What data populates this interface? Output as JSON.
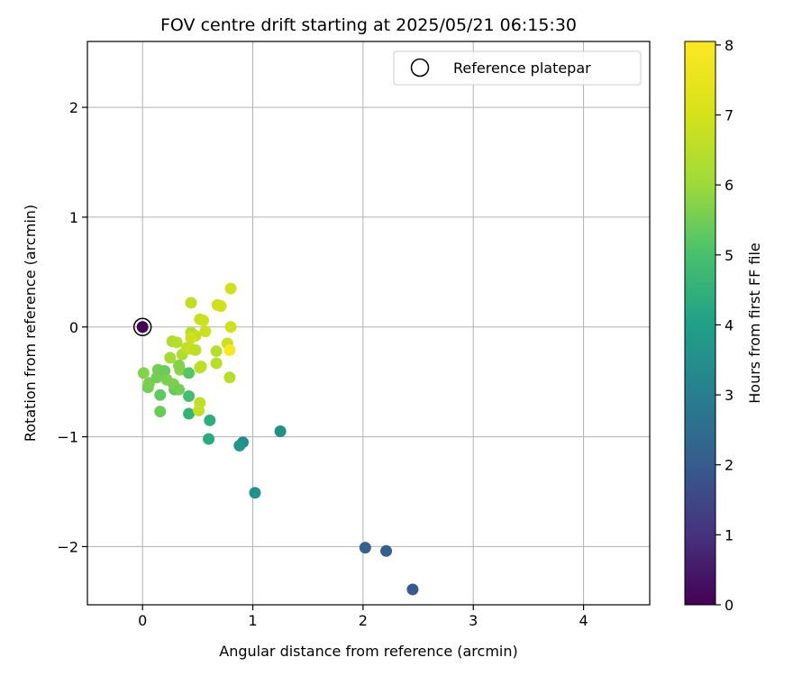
{
  "chart_data": {
    "type": "scatter",
    "title": "FOV centre drift starting at 2025/05/21 06:15:30",
    "xlabel": "Angular distance from reference (arcmin)",
    "ylabel": "Rotation from reference (arcmin)",
    "xlim": [
      -0.5,
      4.6
    ],
    "ylim": [
      -2.53,
      2.6
    ],
    "xticks": [
      0,
      1,
      2,
      3,
      4
    ],
    "xtick_labels": [
      "0",
      "1",
      "2",
      "3",
      "4"
    ],
    "yticks": [
      -2,
      -1,
      0,
      1,
      2
    ],
    "ytick_labels": [
      "−2",
      "−1",
      "0",
      "1",
      "2"
    ],
    "grid": true,
    "legend": {
      "position": "top-right",
      "entries": [
        {
          "label": "Reference platepar",
          "marker": "open-circle"
        }
      ]
    },
    "reference_point": {
      "x": 0,
      "y": 0
    },
    "colorbar": {
      "label": "Hours from first FF file",
      "range": [
        0,
        8.05
      ],
      "ticks": [
        0,
        1,
        2,
        3,
        4,
        5,
        6,
        7,
        8
      ],
      "tick_labels": [
        "0",
        "1",
        "2",
        "3",
        "4",
        "5",
        "6",
        "7",
        "8"
      ],
      "colormap": "viridis"
    },
    "points": [
      {
        "x": 0.0,
        "y": 0.0,
        "hours": 0.0
      },
      {
        "x": 2.45,
        "y": -2.39,
        "hours": 2.0
      },
      {
        "x": 2.21,
        "y": -2.04,
        "hours": 2.1
      },
      {
        "x": 2.02,
        "y": -2.01,
        "hours": 2.2
      },
      {
        "x": 1.02,
        "y": -1.51,
        "hours": 3.6
      },
      {
        "x": 1.25,
        "y": -0.95,
        "hours": 3.5
      },
      {
        "x": 0.91,
        "y": -1.05,
        "hours": 3.4
      },
      {
        "x": 0.88,
        "y": -1.08,
        "hours": 3.7
      },
      {
        "x": 0.6,
        "y": -1.02,
        "hours": 4.3
      },
      {
        "x": 0.61,
        "y": -0.85,
        "hours": 4.4
      },
      {
        "x": 0.42,
        "y": -0.79,
        "hours": 4.6
      },
      {
        "x": 0.42,
        "y": -0.63,
        "hours": 4.9
      },
      {
        "x": 0.16,
        "y": -0.77,
        "hours": 5.4
      },
      {
        "x": 0.16,
        "y": -0.62,
        "hours": 5.3
      },
      {
        "x": 0.05,
        "y": -0.55,
        "hours": 5.5
      },
      {
        "x": 0.06,
        "y": -0.51,
        "hours": 5.6
      },
      {
        "x": 0.01,
        "y": -0.42,
        "hours": 5.7
      },
      {
        "x": 0.13,
        "y": -0.46,
        "hours": 5.5
      },
      {
        "x": 0.14,
        "y": -0.39,
        "hours": 5.5
      },
      {
        "x": 0.2,
        "y": -0.4,
        "hours": 5.4
      },
      {
        "x": 0.22,
        "y": -0.48,
        "hours": 5.6
      },
      {
        "x": 0.29,
        "y": -0.57,
        "hours": 5.3
      },
      {
        "x": 0.28,
        "y": -0.52,
        "hours": 5.6
      },
      {
        "x": 0.33,
        "y": -0.57,
        "hours": 5.5
      },
      {
        "x": 0.34,
        "y": -0.39,
        "hours": 5.8
      },
      {
        "x": 0.33,
        "y": -0.35,
        "hours": 5.7
      },
      {
        "x": 0.42,
        "y": -0.42,
        "hours": 5.2
      },
      {
        "x": 0.25,
        "y": -0.28,
        "hours": 6.1
      },
      {
        "x": 0.27,
        "y": -0.13,
        "hours": 6.3
      },
      {
        "x": 0.31,
        "y": -0.14,
        "hours": 6.4
      },
      {
        "x": 0.36,
        "y": -0.25,
        "hours": 6.3
      },
      {
        "x": 0.4,
        "y": -0.19,
        "hours": 6.6
      },
      {
        "x": 0.44,
        "y": -0.2,
        "hours": 6.7
      },
      {
        "x": 0.48,
        "y": -0.21,
        "hours": 6.6
      },
      {
        "x": 0.44,
        "y": -0.05,
        "hours": 6.4
      },
      {
        "x": 0.48,
        "y": -0.08,
        "hours": 6.6
      },
      {
        "x": 0.44,
        "y": -0.1,
        "hours": 6.9
      },
      {
        "x": 0.52,
        "y": 0.07,
        "hours": 6.7
      },
      {
        "x": 0.55,
        "y": 0.06,
        "hours": 6.8
      },
      {
        "x": 0.57,
        "y": -0.04,
        "hours": 6.8
      },
      {
        "x": 0.44,
        "y": 0.22,
        "hours": 6.6
      },
      {
        "x": 0.68,
        "y": 0.2,
        "hours": 6.8
      },
      {
        "x": 0.71,
        "y": 0.19,
        "hours": 6.9
      },
      {
        "x": 0.8,
        "y": 0.35,
        "hours": 6.9
      },
      {
        "x": 0.8,
        "y": 0.0,
        "hours": 6.9
      },
      {
        "x": 0.77,
        "y": -0.15,
        "hours": 6.8
      },
      {
        "x": 0.67,
        "y": -0.22,
        "hours": 6.4
      },
      {
        "x": 0.67,
        "y": -0.33,
        "hours": 6.5
      },
      {
        "x": 0.79,
        "y": -0.46,
        "hours": 6.5
      },
      {
        "x": 0.52,
        "y": -0.37,
        "hours": 6.5
      },
      {
        "x": 0.53,
        "y": -0.36,
        "hours": 6.6
      },
      {
        "x": 0.52,
        "y": -0.69,
        "hours": 6.6
      },
      {
        "x": 0.51,
        "y": -0.76,
        "hours": 6.7
      },
      {
        "x": 0.79,
        "y": -0.21,
        "hours": 7.95
      }
    ]
  }
}
